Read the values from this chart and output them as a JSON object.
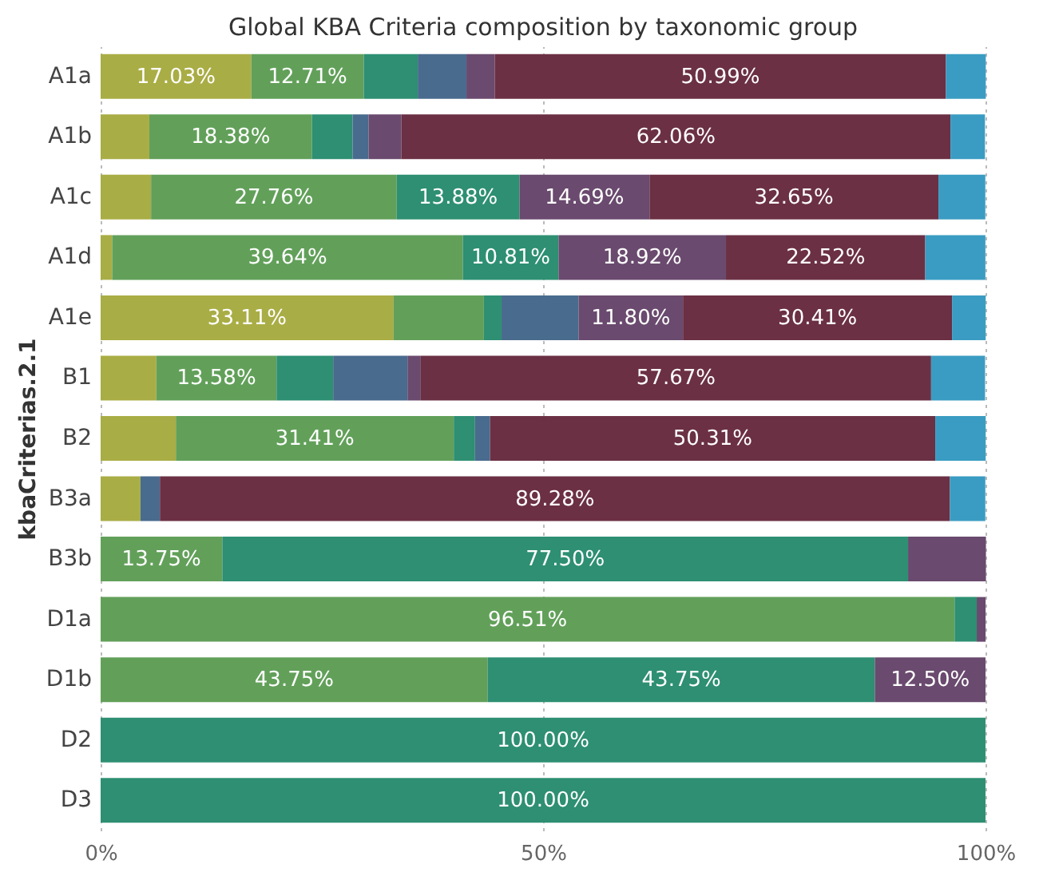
{
  "chart_data": {
    "type": "bar",
    "orientation": "horizontal",
    "stacked": true,
    "title": "Global KBA Criteria composition by taxonomic group",
    "ylabel": "kbaCriterias.2.1",
    "categories": [
      "A1a",
      "A1b",
      "A1c",
      "A1d",
      "A1e",
      "B1",
      "B2",
      "B3a",
      "B3b",
      "D1a",
      "D1b",
      "D2",
      "D3"
    ],
    "series": [
      {
        "color": "#a9ad45",
        "values": [
          17.03,
          5.5,
          5.7,
          1.3,
          33.11,
          6.3,
          8.5,
          4.5,
          null,
          null,
          null,
          null,
          null
        ],
        "value_labels": [
          "17.03%",
          null,
          null,
          null,
          "33.11%",
          null,
          null,
          null,
          null,
          null,
          null,
          null,
          null
        ]
      },
      {
        "color": "#62a05a",
        "values": [
          12.71,
          18.38,
          27.76,
          39.64,
          10.2,
          13.58,
          31.41,
          null,
          13.75,
          96.51,
          43.75,
          null,
          null
        ],
        "value_labels": [
          "12.71%",
          "18.38%",
          "27.76%",
          "39.64%",
          null,
          "13.58%",
          "31.41%",
          null,
          "13.75%",
          "96.51%",
          "43.75%",
          null,
          null
        ]
      },
      {
        "color": "#2e8f72",
        "values": [
          6.1,
          4.6,
          13.88,
          10.81,
          2.0,
          6.4,
          2.4,
          null,
          77.5,
          2.5,
          43.75,
          100.0,
          100.0
        ],
        "value_labels": [
          null,
          null,
          "13.88%",
          "10.81%",
          null,
          null,
          null,
          null,
          "77.50%",
          null,
          "43.75%",
          "100.00%",
          "100.00%"
        ]
      },
      {
        "color": "#496b8d",
        "values": [
          5.5,
          1.8,
          null,
          null,
          8.7,
          8.4,
          1.7,
          2.2,
          null,
          null,
          null,
          null,
          null
        ],
        "value_labels": [
          null,
          null,
          null,
          null,
          null,
          null,
          null,
          null,
          null,
          null,
          null,
          null,
          null
        ]
      },
      {
        "color": "#6a4a6e",
        "values": [
          3.2,
          3.7,
          14.69,
          18.92,
          11.8,
          1.5,
          null,
          null,
          8.8,
          1.0,
          12.5,
          null,
          null
        ],
        "value_labels": [
          null,
          null,
          "14.69%",
          "18.92%",
          "11.80%",
          null,
          null,
          null,
          null,
          null,
          "12.50%",
          null,
          null
        ]
      },
      {
        "color": "#6b3044",
        "values": [
          50.99,
          62.06,
          32.65,
          22.52,
          30.41,
          57.67,
          50.31,
          89.28,
          null,
          null,
          null,
          null,
          null
        ],
        "value_labels": [
          "50.99%",
          "62.06%",
          "32.65%",
          "22.52%",
          "30.41%",
          "57.67%",
          "50.31%",
          "89.28%",
          null,
          null,
          null,
          null,
          null
        ]
      },
      {
        "color": "#3a9cc2",
        "values": [
          4.5,
          3.9,
          5.3,
          6.8,
          3.8,
          6.1,
          5.7,
          4.0,
          null,
          null,
          null,
          null,
          null
        ],
        "value_labels": [
          null,
          null,
          null,
          null,
          null,
          null,
          null,
          null,
          null,
          null,
          null,
          null,
          null
        ]
      }
    ],
    "xlim": [
      0,
      100
    ],
    "xticks": [
      {
        "value": 0,
        "label": "0%"
      },
      {
        "value": 50,
        "label": "50%"
      },
      {
        "value": 100,
        "label": "100%"
      }
    ],
    "grid": "x",
    "legend": false
  }
}
